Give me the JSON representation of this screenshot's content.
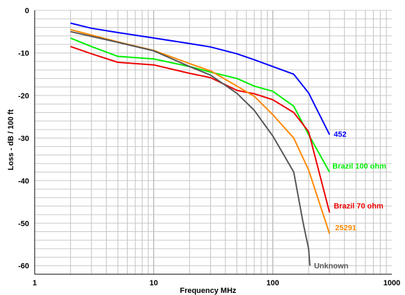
{
  "chart_data": {
    "type": "line",
    "xlabel": "Frequency  MHz",
    "ylabel": "Loss - dB / 100 ft",
    "x_scale": "log",
    "xlim": [
      1,
      1000
    ],
    "ylim": [
      -62,
      0
    ],
    "x_ticks": [
      1,
      10,
      100,
      1000
    ],
    "x_tick_labels": [
      "1",
      "10",
      "100",
      "1000"
    ],
    "y_ticks": [
      0,
      -10,
      -20,
      -30,
      -40,
      -50,
      -60
    ],
    "y_tick_labels": [
      "0",
      "-10",
      "-20",
      "-30",
      "-40",
      "-50",
      "-60"
    ],
    "grid": true,
    "series": [
      {
        "name": "452",
        "color": "#0000ff",
        "points": [
          [
            2,
            -3
          ],
          [
            3,
            -4.2
          ],
          [
            5,
            -5.2
          ],
          [
            10,
            -6.5
          ],
          [
            20,
            -7.8
          ],
          [
            30,
            -8.6
          ],
          [
            50,
            -10.2
          ],
          [
            70,
            -11.6
          ],
          [
            100,
            -13.2
          ],
          [
            150,
            -15
          ],
          [
            200,
            -19.4
          ],
          [
            300,
            -29.2
          ]
        ]
      },
      {
        "name": "Brazil 100 ohm",
        "color": "#00ee00",
        "points": [
          [
            2,
            -6.5
          ],
          [
            3,
            -8.5
          ],
          [
            5,
            -10.8
          ],
          [
            10,
            -11.4
          ],
          [
            20,
            -13.2
          ],
          [
            30,
            -14.5
          ],
          [
            50,
            -16
          ],
          [
            70,
            -17.8
          ],
          [
            100,
            -19
          ],
          [
            150,
            -22.5
          ],
          [
            200,
            -29.2
          ],
          [
            300,
            -38
          ]
        ]
      },
      {
        "name": "Brazil 70 ohm",
        "color": "#ee0000",
        "points": [
          [
            2,
            -8.5
          ],
          [
            3,
            -10.2
          ],
          [
            5,
            -12.2
          ],
          [
            10,
            -12.8
          ],
          [
            20,
            -14.8
          ],
          [
            30,
            -15.8
          ],
          [
            50,
            -18.8
          ],
          [
            70,
            -19.6
          ],
          [
            100,
            -21
          ],
          [
            150,
            -24
          ],
          [
            200,
            -28.5
          ],
          [
            300,
            -47.5
          ]
        ]
      },
      {
        "name": "25291",
        "color": "#ff8800",
        "points": [
          [
            2,
            -4.5
          ],
          [
            3,
            -5.8
          ],
          [
            5,
            -7.4
          ],
          [
            10,
            -9.4
          ],
          [
            20,
            -12.5
          ],
          [
            30,
            -14.2
          ],
          [
            50,
            -17.8
          ],
          [
            70,
            -20.2
          ],
          [
            100,
            -24.5
          ],
          [
            150,
            -30
          ],
          [
            200,
            -37.5
          ],
          [
            300,
            -52.5
          ]
        ]
      },
      {
        "name": "Unknown",
        "color": "#555555",
        "points": [
          [
            2,
            -5
          ],
          [
            3,
            -6.1
          ],
          [
            5,
            -7.5
          ],
          [
            10,
            -9.5
          ],
          [
            20,
            -13.2
          ],
          [
            30,
            -15.2
          ],
          [
            50,
            -19.5
          ],
          [
            70,
            -23.5
          ],
          [
            100,
            -29.5
          ],
          [
            150,
            -38
          ],
          [
            180,
            -50
          ],
          [
            200,
            -56
          ],
          [
            205,
            -60
          ]
        ]
      }
    ]
  }
}
